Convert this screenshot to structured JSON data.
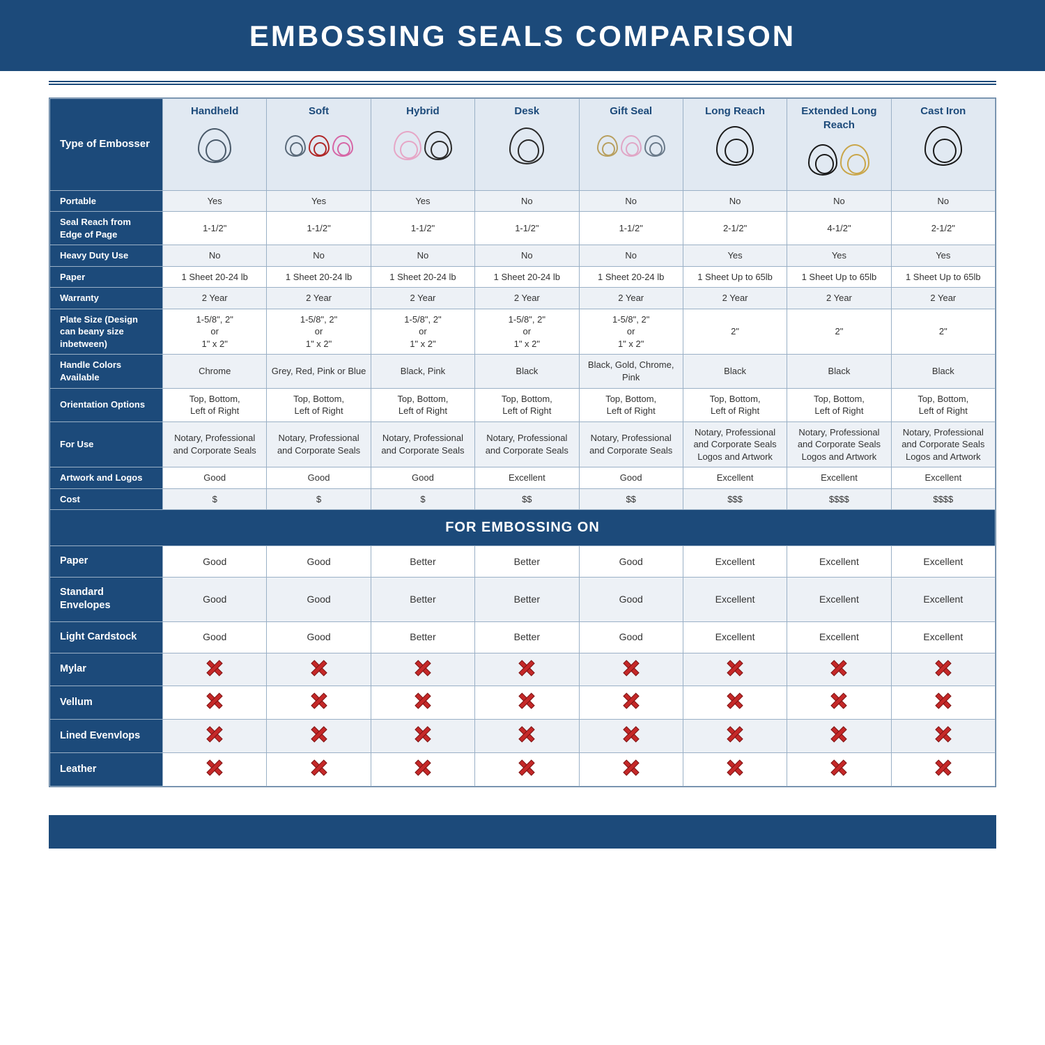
{
  "title": "EMBOSSING SEALS COMPARISON",
  "cornerLabel": "Type of Embosser",
  "sectionBand": "FOR EMBOSSING ON",
  "colors": {
    "primary": "#1c4a7a",
    "altRow": "#edf1f6",
    "headerBg": "#e1e9f2",
    "border": "#9ab0c6",
    "xRed": "#c62828"
  },
  "columns": [
    {
      "label": "Handheld",
      "imgColors": [
        "#4a5a6a"
      ],
      "imgSize": 48
    },
    {
      "label": "Soft",
      "imgColors": [
        "#5a6a7a",
        "#b02828",
        "#d666a6"
      ],
      "imgSize": 30
    },
    {
      "label": "Hybrid",
      "imgColors": [
        "#e6a6c6",
        "#2a2a2a"
      ],
      "imgSize": 40
    },
    {
      "label": "Desk",
      "imgColors": [
        "#2a2a2a"
      ],
      "imgSize": 50
    },
    {
      "label": "Gift Seal",
      "imgColors": [
        "#b8a060",
        "#e0a6c6",
        "#6a7a8a"
      ],
      "imgSize": 30
    },
    {
      "label": "Long Reach",
      "imgColors": [
        "#1a1a1a"
      ],
      "imgSize": 54
    },
    {
      "label": "Extended Long Reach",
      "imgColors": [
        "#1a1a1a",
        "#c9a64a"
      ],
      "imgSize": 42
    },
    {
      "label": "Cast Iron",
      "imgColors": [
        "#1a1a1a"
      ],
      "imgSize": 54
    }
  ],
  "specRows": [
    {
      "zebra": true,
      "label": "Portable",
      "cells": [
        "Yes",
        "Yes",
        "Yes",
        "No",
        "No",
        "No",
        "No",
        "No"
      ]
    },
    {
      "zebra": false,
      "label": "Seal Reach from Edge of Page",
      "cells": [
        "1-1/2\"",
        "1-1/2\"",
        "1-1/2\"",
        "1-1/2\"",
        "1-1/2\"",
        "2-1/2\"",
        "4-1/2\"",
        "2-1/2\""
      ]
    },
    {
      "zebra": true,
      "label": "Heavy Duty Use",
      "cells": [
        "No",
        "No",
        "No",
        "No",
        "No",
        "Yes",
        "Yes",
        "Yes"
      ]
    },
    {
      "zebra": false,
      "label": "Paper",
      "cells": [
        "1 Sheet 20-24 lb",
        "1 Sheet 20-24 lb",
        "1 Sheet 20-24 lb",
        "1 Sheet 20-24 lb",
        "1 Sheet 20-24 lb",
        "1 Sheet Up to 65lb",
        "1 Sheet Up to 65lb",
        "1 Sheet Up to 65lb"
      ]
    },
    {
      "zebra": true,
      "label": "Warranty",
      "cells": [
        "2 Year",
        "2 Year",
        "2 Year",
        "2 Year",
        "2 Year",
        "2 Year",
        "2 Year",
        "2 Year"
      ]
    },
    {
      "zebra": false,
      "label": "Plate Size (Design can beany size inbetween)",
      "cells": [
        "1-5/8\", 2\"\nor\n1\" x 2\"",
        "1-5/8\", 2\"\nor\n1\" x 2\"",
        "1-5/8\", 2\"\nor\n1\" x 2\"",
        "1-5/8\", 2\"\nor\n1\" x 2\"",
        "1-5/8\", 2\"\nor\n1\" x 2\"",
        "2\"",
        "2\"",
        "2\""
      ]
    },
    {
      "zebra": true,
      "label": "Handle Colors Available",
      "cells": [
        "Chrome",
        "Grey, Red, Pink or Blue",
        "Black, Pink",
        "Black",
        "Black, Gold, Chrome, Pink",
        "Black",
        "Black",
        "Black"
      ]
    },
    {
      "zebra": false,
      "label": "Orientation Options",
      "cells": [
        "Top, Bottom,\nLeft of Right",
        "Top, Bottom,\nLeft of Right",
        "Top, Bottom,\nLeft of Right",
        "Top, Bottom,\nLeft of Right",
        "Top, Bottom,\nLeft of Right",
        "Top, Bottom,\nLeft of Right",
        "Top, Bottom,\nLeft of Right",
        "Top, Bottom,\nLeft of Right"
      ]
    },
    {
      "zebra": true,
      "label": "For Use",
      "cells": [
        "Notary, Professional and Corporate Seals",
        "Notary, Professional and Corporate Seals",
        "Notary, Professional and Corporate Seals",
        "Notary, Professional and Corporate Seals",
        "Notary, Professional and Corporate Seals",
        "Notary, Professional and Corporate Seals Logos and Artwork",
        "Notary, Professional and Corporate Seals Logos and Artwork",
        "Notary, Professional and Corporate Seals Logos and Artwork"
      ]
    },
    {
      "zebra": false,
      "label": "Artwork and Logos",
      "cells": [
        "Good",
        "Good",
        "Good",
        "Excellent",
        "Good",
        "Excellent",
        "Excellent",
        "Excellent"
      ]
    },
    {
      "zebra": true,
      "label": "Cost",
      "cells": [
        "$",
        "$",
        "$",
        "$$",
        "$$",
        "$$$",
        "$$$$",
        "$$$$"
      ]
    }
  ],
  "materialRows": [
    {
      "zebra": false,
      "label": "Paper",
      "cells": [
        "Good",
        "Good",
        "Better",
        "Better",
        "Good",
        "Excellent",
        "Excellent",
        "Excellent"
      ]
    },
    {
      "zebra": true,
      "label": "Standard Envelopes",
      "cells": [
        "Good",
        "Good",
        "Better",
        "Better",
        "Good",
        "Excellent",
        "Excellent",
        "Excellent"
      ]
    },
    {
      "zebra": false,
      "label": "Light Cardstock",
      "cells": [
        "Good",
        "Good",
        "Better",
        "Better",
        "Good",
        "Excellent",
        "Excellent",
        "Excellent"
      ]
    },
    {
      "zebra": true,
      "label": "Mylar",
      "cells": [
        "X",
        "X",
        "X",
        "X",
        "X",
        "X",
        "X",
        "X"
      ]
    },
    {
      "zebra": false,
      "label": "Vellum",
      "cells": [
        "X",
        "X",
        "X",
        "X",
        "X",
        "X",
        "X",
        "X"
      ]
    },
    {
      "zebra": true,
      "label": "Lined Evenvlops",
      "cells": [
        "X",
        "X",
        "X",
        "X",
        "X",
        "X",
        "X",
        "X"
      ]
    },
    {
      "zebra": false,
      "label": "Leather",
      "cells": [
        "X",
        "X",
        "X",
        "X",
        "X",
        "X",
        "X",
        "X"
      ]
    }
  ]
}
